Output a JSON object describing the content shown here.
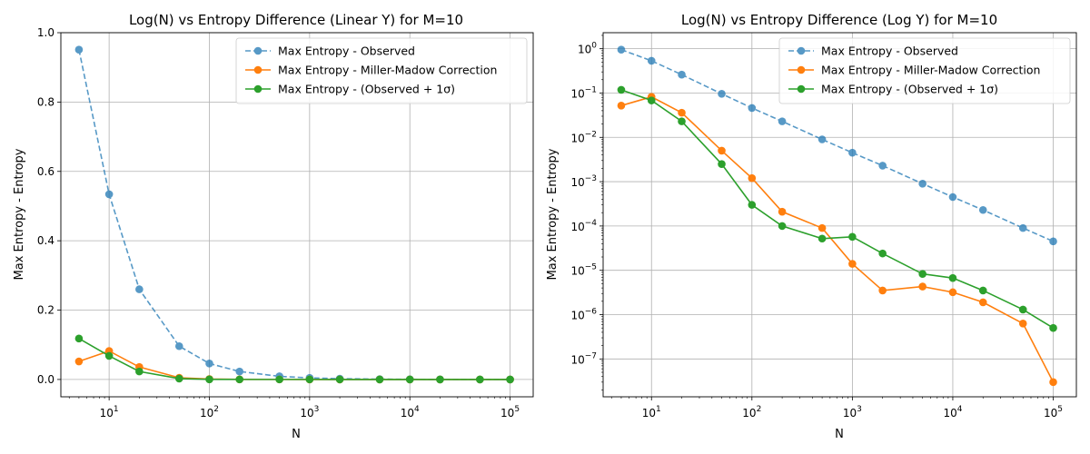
{
  "chart_data": [
    {
      "type": "line",
      "title": "Log(N) vs Entropy Difference (Linear Y) for M=10",
      "xlabel": "N",
      "ylabel": "Max Entropy - Entropy",
      "xscale": "log",
      "yscale": "linear",
      "xlim": [
        3.3,
        170000
      ],
      "ylim": [
        -0.05,
        1.0
      ],
      "grid": true,
      "legend_position": "top-right",
      "x": [
        5,
        10,
        20,
        50,
        100,
        200,
        500,
        1000,
        2000,
        5000,
        10000,
        20000,
        50000,
        100000
      ],
      "x_ticks": [
        {
          "value": 10,
          "base": "10",
          "exp": "1"
        },
        {
          "value": 100,
          "base": "10",
          "exp": "2"
        },
        {
          "value": 1000,
          "base": "10",
          "exp": "3"
        },
        {
          "value": 10000,
          "base": "10",
          "exp": "4"
        },
        {
          "value": 100000,
          "base": "10",
          "exp": "5"
        }
      ],
      "y_ticks": [
        {
          "value": 0.0,
          "label": "0.0"
        },
        {
          "value": 0.2,
          "label": "0.2"
        },
        {
          "value": 0.4,
          "label": "0.4"
        },
        {
          "value": 0.6,
          "label": "0.6"
        },
        {
          "value": 0.8,
          "label": "0.8"
        },
        {
          "value": 1.0,
          "label": "1.0"
        }
      ],
      "series": [
        {
          "name": "Max Entropy - Observed",
          "color": "#1f77b4",
          "dashed": true,
          "alpha": 0.75,
          "values": [
            0.951,
            0.534,
            0.26,
            0.096,
            0.046,
            0.023,
            0.009,
            0.0045,
            0.0023,
            0.0009,
            0.00045,
            0.00023,
            9e-05,
            4.5e-05
          ]
        },
        {
          "name": "Max Entropy - Miller-Madow Correction",
          "color": "#ff7f0e",
          "dashed": false,
          "alpha": 1,
          "values": [
            0.052,
            0.082,
            0.036,
            0.005,
            0.0012,
            0.00021,
            9e-05,
            1.4e-05,
            3.5e-06,
            4.3e-06,
            3.2e-06,
            1.9e-06,
            6.3e-07,
            3e-08
          ]
        },
        {
          "name": "Max Entropy - (Observed + 1σ)",
          "color": "#2ca02c",
          "dashed": false,
          "alpha": 1,
          "values": [
            0.118,
            0.068,
            0.023,
            0.0025,
            0.0003,
            0.0001,
            5.2e-05,
            5.7e-05,
            2.4e-05,
            8.3e-06,
            6.7e-06,
            3.5e-06,
            1.3e-06,
            5e-07
          ]
        }
      ]
    },
    {
      "type": "line",
      "title": "Log(N) vs Entropy Difference (Log Y) for M=10",
      "xlabel": "N",
      "ylabel": "Max Entropy - Entropy",
      "xscale": "log",
      "yscale": "log",
      "xlim": [
        3.3,
        170000
      ],
      "ylim": [
        1.4e-08,
        2.3
      ],
      "grid": true,
      "legend_position": "top-right",
      "x": [
        5,
        10,
        20,
        50,
        100,
        200,
        500,
        1000,
        2000,
        5000,
        10000,
        20000,
        50000,
        100000
      ],
      "x_ticks": [
        {
          "value": 10,
          "base": "10",
          "exp": "1"
        },
        {
          "value": 100,
          "base": "10",
          "exp": "2"
        },
        {
          "value": 1000,
          "base": "10",
          "exp": "3"
        },
        {
          "value": 10000,
          "base": "10",
          "exp": "4"
        },
        {
          "value": 100000,
          "base": "10",
          "exp": "5"
        }
      ],
      "y_ticks": [
        {
          "value": 1,
          "base": "10",
          "exp": "0"
        },
        {
          "value": 0.1,
          "base": "10",
          "exp": "−1"
        },
        {
          "value": 0.01,
          "base": "10",
          "exp": "−2"
        },
        {
          "value": 0.001,
          "base": "10",
          "exp": "−3"
        },
        {
          "value": 0.0001,
          "base": "10",
          "exp": "−4"
        },
        {
          "value": 1e-05,
          "base": "10",
          "exp": "−5"
        },
        {
          "value": 1e-06,
          "base": "10",
          "exp": "−6"
        },
        {
          "value": 1e-07,
          "base": "10",
          "exp": "−7"
        }
      ],
      "series": [
        {
          "name": "Max Entropy - Observed",
          "color": "#1f77b4",
          "dashed": true,
          "alpha": 0.75,
          "values": [
            0.951,
            0.534,
            0.26,
            0.096,
            0.046,
            0.023,
            0.009,
            0.0045,
            0.0023,
            0.0009,
            0.00045,
            0.00023,
            9e-05,
            4.5e-05
          ]
        },
        {
          "name": "Max Entropy - Miller-Madow Correction",
          "color": "#ff7f0e",
          "dashed": false,
          "alpha": 1,
          "values": [
            0.052,
            0.082,
            0.036,
            0.005,
            0.0012,
            0.00021,
            9e-05,
            1.4e-05,
            3.5e-06,
            4.3e-06,
            3.2e-06,
            1.9e-06,
            6.3e-07,
            3e-08
          ]
        },
        {
          "name": "Max Entropy - (Observed + 1σ)",
          "color": "#2ca02c",
          "dashed": false,
          "alpha": 1,
          "values": [
            0.118,
            0.068,
            0.023,
            0.0025,
            0.0003,
            0.0001,
            5.2e-05,
            5.7e-05,
            2.4e-05,
            8.3e-06,
            6.7e-06,
            3.5e-06,
            1.3e-06,
            5e-07
          ]
        }
      ]
    }
  ]
}
